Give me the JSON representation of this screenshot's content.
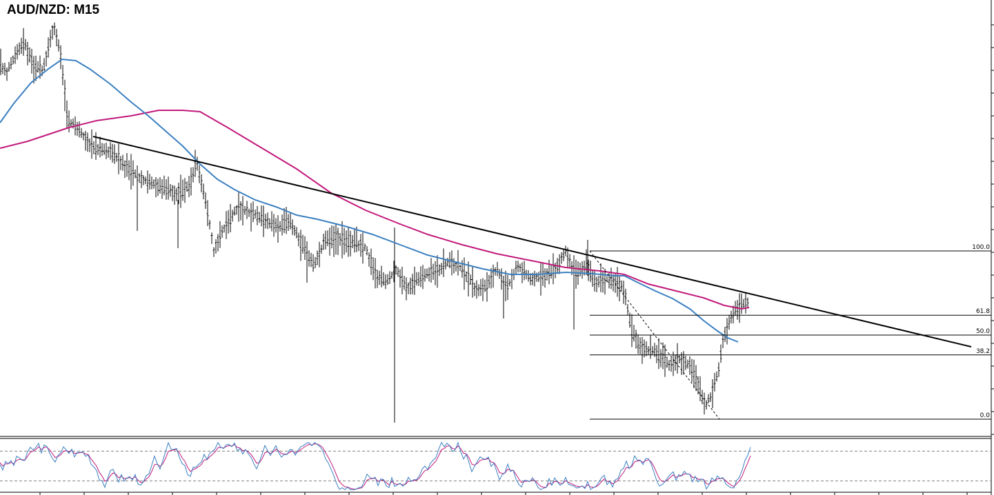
{
  "title": "AUD/NZD: M15",
  "colors": {
    "background": "#ffffff",
    "candles": "#000000",
    "ma_fast": "#3a7fc0",
    "ma_slow": "#c2187a",
    "trendline": "#000000",
    "fib_lines": "#000000",
    "stoch_main": "#3a7fc0",
    "stoch_signal": "#c2187a",
    "stoch_levels": "#808080"
  },
  "chart_data": [
    {
      "type": "line",
      "subtype": "ohlc-bars",
      "title": "AUD/NZD: M15",
      "grid": false,
      "series": [],
      "fibonacci_levels": [
        {
          "label": "100.0",
          "level": 100.0
        },
        {
          "label": "61.8",
          "level": 61.8
        },
        {
          "label": "50.0",
          "level": 50.0
        },
        {
          "label": "38.2",
          "level": 38.2
        },
        {
          "label": "0.0",
          "level": 0.0
        }
      ],
      "indicators": [
        "moving average (fast)",
        "moving average (slow)",
        "descending trendline",
        "fibonacci retracement"
      ]
    },
    {
      "type": "line",
      "subtype": "stochastic-oscillator",
      "levels": [
        80,
        20
      ],
      "ylim": [
        0,
        100
      ]
    }
  ]
}
